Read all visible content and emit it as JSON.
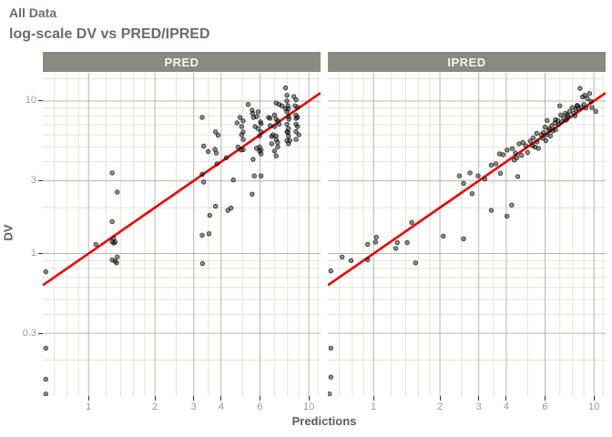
{
  "header": {
    "title": "All Data",
    "subtitle": "log-scale DV vs PRED/IPRED"
  },
  "colors": {
    "title_text": "#6e6b68",
    "axis_title_text": "#5f5c5a",
    "tick_label_text": "#9a9a9a",
    "tick_mark": "#333333",
    "strip_background": "#8a8a80",
    "strip_text": "#f5f5f2",
    "grid_major": "#b7b7ad",
    "grid_minor": "#e4e4da",
    "reference_line": "#ee0000",
    "point": "#1a1a1a",
    "panel_background": "#ffffff"
  },
  "chart_data": {
    "type": "scatter",
    "title": "All Data",
    "subtitle": "log-scale DV vs PRED/IPRED",
    "xlabel": "Predictions",
    "ylabel": "DV",
    "x_scale": "log10",
    "y_scale": "log10",
    "x_range": [
      0.62,
      11.3
    ],
    "y_range": [
      0.1165,
      15.3
    ],
    "x_ticks": [
      1,
      2,
      3,
      4,
      6,
      10
    ],
    "y_ticks": [
      10,
      3,
      1,
      0.3
    ],
    "x_minor_gridlines": [
      0.7,
      0.8,
      0.9,
      1.2,
      1.4,
      1.6,
      1.8,
      2.5,
      3.5,
      5,
      7,
      8,
      9,
      11
    ],
    "y_minor_gridlines": [
      0.2,
      0.4,
      0.5,
      0.6,
      0.7,
      0.8,
      0.9,
      2,
      4,
      5,
      6,
      7,
      8,
      9,
      14
    ],
    "grid": true,
    "legend": "none",
    "reference_line": {
      "kind": "identity",
      "equation": "y = x",
      "color": "#ee0000"
    },
    "facets": [
      {
        "label": "PRED",
        "points": [
          [
            0.64,
            0.76
          ],
          [
            0.64,
            0.24
          ],
          [
            0.64,
            0.15
          ],
          [
            0.64,
            0.12
          ],
          [
            1.08,
            1.15
          ],
          [
            1.28,
            3.38
          ],
          [
            1.35,
            2.53
          ],
          [
            1.28,
            1.62
          ],
          [
            1.3,
            1.26
          ],
          [
            1.3,
            1.17
          ],
          [
            1.32,
            1.19
          ],
          [
            1.28,
            1.2
          ],
          [
            1.28,
            0.91
          ],
          [
            1.32,
            0.89
          ],
          [
            1.35,
            0.95
          ],
          [
            1.34,
            0.87
          ],
          [
            3.28,
            7.8
          ],
          [
            3.33,
            5.06
          ],
          [
            3.49,
            4.66
          ],
          [
            3.28,
            3.3
          ],
          [
            3.33,
            2.94
          ],
          [
            3.29,
            0.86
          ],
          [
            3.28,
            1.32
          ],
          [
            3.52,
            1.35
          ],
          [
            3.55,
            1.78
          ],
          [
            3.75,
            4.82
          ],
          [
            3.8,
            4.56
          ],
          [
            3.83,
            3.88
          ],
          [
            3.77,
            6.28
          ],
          [
            3.87,
            5.97
          ],
          [
            3.77,
            2.04
          ],
          [
            4.22,
            4.25
          ],
          [
            4.43,
            1.99
          ],
          [
            4.54,
            3.04
          ],
          [
            4.29,
            1.92
          ],
          [
            4.72,
            7.2
          ],
          [
            4.87,
            7.8
          ],
          [
            4.95,
            6.8
          ],
          [
            4.95,
            6.0
          ],
          [
            4.77,
            5.0
          ],
          [
            4.92,
            4.78
          ],
          [
            5.03,
            7.4
          ],
          [
            5.03,
            6.28
          ],
          [
            5.03,
            5.6
          ],
          [
            5.03,
            4.8
          ],
          [
            5.3,
            9.5
          ],
          [
            5.56,
            8.3
          ],
          [
            5.53,
            8.7
          ],
          [
            5.61,
            7.8
          ],
          [
            5.58,
            4.15
          ],
          [
            5.65,
            3.23
          ],
          [
            5.53,
            2.45
          ],
          [
            5.8,
            7.9
          ],
          [
            5.88,
            8.5
          ],
          [
            5.7,
            6.8
          ],
          [
            5.88,
            6.6
          ],
          [
            5.97,
            5.9
          ],
          [
            5.79,
            4.9
          ],
          [
            5.97,
            4.7
          ],
          [
            6.07,
            4.5
          ],
          [
            6.03,
            7.3
          ],
          [
            6.07,
            7.1
          ],
          [
            6.07,
            6.28
          ],
          [
            5.97,
            5.0
          ],
          [
            6.07,
            4.78
          ],
          [
            6.07,
            3.23
          ],
          [
            6.56,
            7.8
          ],
          [
            6.67,
            6.9
          ],
          [
            6.67,
            7.7
          ],
          [
            6.78,
            5.85
          ],
          [
            6.98,
            8.1
          ],
          [
            7.1,
            7.6
          ],
          [
            6.98,
            6.8
          ],
          [
            6.87,
            6.0
          ],
          [
            7.1,
            5.9
          ],
          [
            6.78,
            5.25
          ],
          [
            6.98,
            4.7
          ],
          [
            7.1,
            4.37
          ],
          [
            7.22,
            5.0
          ],
          [
            7.1,
            9.7
          ],
          [
            7.33,
            9.5
          ],
          [
            7.22,
            7.4
          ],
          [
            7.33,
            7.05
          ],
          [
            7.1,
            5.6
          ],
          [
            7.22,
            5.35
          ],
          [
            7.55,
            9.3
          ],
          [
            7.83,
            12.2
          ],
          [
            7.95,
            10.9
          ],
          [
            7.95,
            10.0
          ],
          [
            7.83,
            8.9
          ],
          [
            7.95,
            8.5
          ],
          [
            8.08,
            7.9
          ],
          [
            8.03,
            9.3
          ],
          [
            8.08,
            8.9
          ],
          [
            8.12,
            7.6
          ],
          [
            7.95,
            7.05
          ],
          [
            8.08,
            6.6
          ],
          [
            8.03,
            6.2
          ],
          [
            7.95,
            6.3
          ],
          [
            8.08,
            5.9
          ],
          [
            7.95,
            5.5
          ],
          [
            8.2,
            5.5
          ],
          [
            8.08,
            5.25
          ],
          [
            8.55,
            10.7
          ],
          [
            8.74,
            10.2
          ],
          [
            8.66,
            9.3
          ],
          [
            8.88,
            9.1
          ],
          [
            8.74,
            8.1
          ],
          [
            8.88,
            7.8
          ],
          [
            8.74,
            7.7
          ],
          [
            8.88,
            6.8
          ],
          [
            8.74,
            7.05
          ],
          [
            8.74,
            6.3
          ],
          [
            9.0,
            6.0
          ],
          [
            8.74,
            5.6
          ]
        ]
      },
      {
        "label": "IPRED",
        "points": [
          [
            0.64,
            0.77
          ],
          [
            0.64,
            0.24
          ],
          [
            0.64,
            0.155
          ],
          [
            0.63,
            0.12
          ],
          [
            0.72,
            0.95
          ],
          [
            0.79,
            0.9
          ],
          [
            0.94,
            0.91
          ],
          [
            0.94,
            1.15
          ],
          [
            1.02,
            1.19
          ],
          [
            1.03,
            1.28
          ],
          [
            1.28,
            1.18
          ],
          [
            1.42,
            1.18
          ],
          [
            1.26,
            1.08
          ],
          [
            1.55,
            0.87
          ],
          [
            1.49,
            1.6
          ],
          [
            2.07,
            1.3
          ],
          [
            2.56,
            1.25
          ],
          [
            2.45,
            3.23
          ],
          [
            2.56,
            2.88
          ],
          [
            2.74,
            3.38
          ],
          [
            2.8,
            2.47
          ],
          [
            2.98,
            3.23
          ],
          [
            3.2,
            3.08
          ],
          [
            3.42,
            3.8
          ],
          [
            3.59,
            3.88
          ],
          [
            3.76,
            3.35
          ],
          [
            3.73,
            4.5
          ],
          [
            3.87,
            4.45
          ],
          [
            3.42,
            1.92
          ],
          [
            4.03,
            1.76
          ],
          [
            4.23,
            2.08
          ],
          [
            4.04,
            4.77
          ],
          [
            4.26,
            4.88
          ],
          [
            4.4,
            4.56
          ],
          [
            4.47,
            4.25
          ],
          [
            4.57,
            5.24
          ],
          [
            4.76,
            5.35
          ],
          [
            4.51,
            3.2
          ],
          [
            4.35,
            4.1
          ],
          [
            4.7,
            4.4
          ],
          [
            4.9,
            5.1
          ],
          [
            5.0,
            4.6
          ],
          [
            5.4,
            5.0
          ],
          [
            5.6,
            4.9
          ],
          [
            5.3,
            5.74
          ],
          [
            5.14,
            5.46
          ],
          [
            5.26,
            5.1
          ],
          [
            5.52,
            5.4
          ],
          [
            5.49,
            6.14
          ],
          [
            5.77,
            6.0
          ],
          [
            5.85,
            5.7
          ],
          [
            6.05,
            5.5
          ],
          [
            6.35,
            5.9
          ],
          [
            6.0,
            6.74
          ],
          [
            6.25,
            6.43
          ],
          [
            6.14,
            7.45
          ],
          [
            6.44,
            6.9
          ],
          [
            6.65,
            7.2
          ],
          [
            6.69,
            7.55
          ],
          [
            6.86,
            7.45
          ],
          [
            5.9,
            6.2
          ],
          [
            6.1,
            6.0
          ],
          [
            6.3,
            6.6
          ],
          [
            6.5,
            6.35
          ],
          [
            6.7,
            6.5
          ],
          [
            6.9,
            7.0
          ],
          [
            7.07,
            8.1
          ],
          [
            7.3,
            7.7
          ],
          [
            7.41,
            8.3
          ],
          [
            7.58,
            8.1
          ],
          [
            7.77,
            8.56
          ],
          [
            7.97,
            9.05
          ],
          [
            7.15,
            7.3
          ],
          [
            7.5,
            7.5
          ],
          [
            7.65,
            7.9
          ],
          [
            7.0,
            9.3
          ],
          [
            8.28,
            8.85
          ],
          [
            8.42,
            9.35
          ],
          [
            8.1,
            8.3
          ],
          [
            8.2,
            8.0
          ],
          [
            8.5,
            8.9
          ],
          [
            8.38,
            9.3
          ],
          [
            8.65,
            12.1
          ],
          [
            8.87,
            10.65
          ],
          [
            9.1,
            10.9
          ],
          [
            9.33,
            10.4
          ],
          [
            9.55,
            11.2
          ],
          [
            9.7,
            9.95
          ],
          [
            9.8,
            9.05
          ],
          [
            10.2,
            8.56
          ],
          [
            8.8,
            9.1
          ],
          [
            9.0,
            9.5
          ],
          [
            9.2,
            9.0
          ]
        ]
      }
    ]
  }
}
